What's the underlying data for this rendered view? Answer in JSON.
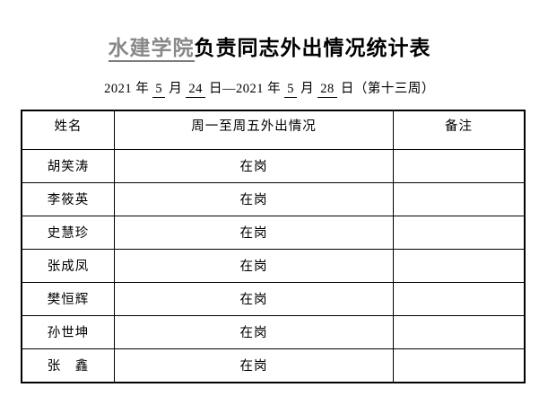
{
  "title": {
    "unit": "水建学院",
    "main": "负责同志外出情况统计表"
  },
  "subtitle": {
    "segments": [
      {
        "text": "2021 年",
        "underline": false
      },
      {
        "text": "5",
        "underline": true
      },
      {
        "text": "月",
        "underline": false
      },
      {
        "text": "24",
        "underline": true
      },
      {
        "text": "日—2021 年",
        "underline": false
      },
      {
        "text": "5",
        "underline": true
      },
      {
        "text": "月",
        "underline": false
      },
      {
        "text": "28",
        "underline": true
      },
      {
        "text": "日（第十三周）",
        "underline": false
      }
    ]
  },
  "table": {
    "headers": [
      "姓名",
      "周一至周五外出情况",
      "备注"
    ],
    "rows": [
      {
        "name": "胡笑涛",
        "status": "在岗",
        "remark": ""
      },
      {
        "name": "李筱英",
        "status": "在岗",
        "remark": ""
      },
      {
        "name": "史慧珍",
        "status": "在岗",
        "remark": ""
      },
      {
        "name": "张成凤",
        "status": "在岗",
        "remark": ""
      },
      {
        "name": "樊恒辉",
        "status": "在岗",
        "remark": ""
      },
      {
        "name": "孙世坤",
        "status": "在岗",
        "remark": ""
      },
      {
        "name": "张　鑫",
        "status": "在岗",
        "remark": ""
      }
    ]
  },
  "colors": {
    "unit_gray": "#888888",
    "text": "#000000",
    "border": "#000000",
    "background": "#ffffff"
  }
}
